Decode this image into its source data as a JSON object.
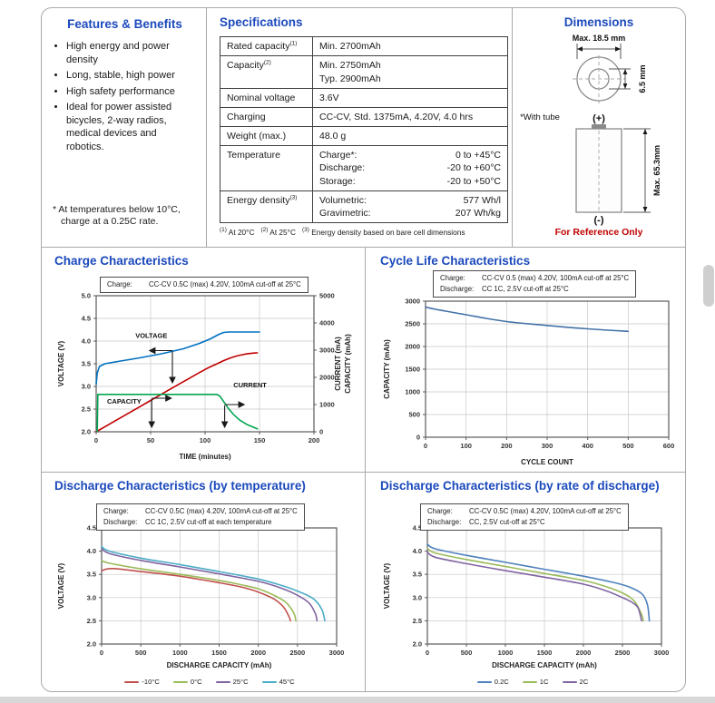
{
  "features": {
    "title": "Features & Benefits",
    "items": [
      "High energy and power density",
      "Long, stable, high power",
      "High safety performance",
      "Ideal for power assisted bicycles, 2-way radios, medical devices and robotics."
    ],
    "footnote": "* At temperatures below 10°C, charge at a 0.25C rate."
  },
  "specs": {
    "title": "Specifications",
    "rows": [
      {
        "label": "Rated capacity",
        "sup": "(1)",
        "values": [
          "Min. 2700mAh"
        ]
      },
      {
        "label": "Capacity",
        "sup": "(2)",
        "values": [
          "Min. 2750mAh",
          "Typ.  2900mAh"
        ]
      },
      {
        "label": "Nominal voltage",
        "values": [
          "3.6V"
        ]
      },
      {
        "label": "Charging",
        "values": [
          "CC-CV, Std. 1375mA, 4.20V, 4.0 hrs"
        ]
      },
      {
        "label": "Weight (max.)",
        "values": [
          "48.0 g"
        ]
      },
      {
        "label": "Temperature",
        "pairs": [
          [
            "Charge*:",
            "0 to +45°C"
          ],
          [
            "Discharge:",
            "-20 to +60°C"
          ],
          [
            "Storage:",
            "-20 to +50°C"
          ]
        ]
      },
      {
        "label": "Energy density",
        "sup": "(3)",
        "pairs": [
          [
            "Volumetric:",
            "577 Wh/l"
          ],
          [
            "Gravimetric:",
            "207 Wh/kg"
          ]
        ]
      }
    ],
    "footnotes": [
      {
        "sup": "(1)",
        "text": "At 20°C"
      },
      {
        "sup": "(2)",
        "text": "At 25°C"
      },
      {
        "sup": "(3)",
        "text": "Energy density based on bare cell dimensions"
      }
    ]
  },
  "dimensions": {
    "title": "Dimensions",
    "max_diameter": "Max. 18.5 mm",
    "tip_height": "6.5 mm",
    "with_tube": "*With tube",
    "positive": "(+)",
    "negative": "(-)",
    "max_height": "Max. 65.3mm",
    "footer": "For Reference Only"
  },
  "chart_data": [
    {
      "id": "charge",
      "type": "line",
      "title": "Charge Characteristics",
      "conditions": [
        {
          "label": "Charge:",
          "text": "CC-CV 0.5C (max) 4.20V, 100mA cut-off at 25°C"
        }
      ],
      "xlabel": "TIME (minutes)",
      "ylabel_left": "VOLTAGE (V)",
      "ylabel_right": [
        "CURRENT (mA)",
        "CAPACITY (mAh)"
      ],
      "xlim": [
        0,
        200
      ],
      "xticks": [
        0,
        50,
        100,
        150,
        200
      ],
      "ylim_left": [
        2.0,
        5.0
      ],
      "yticks_left": [
        2.0,
        2.5,
        3.0,
        3.5,
        4.0,
        4.5,
        5.0
      ],
      "ylim_right": [
        0,
        5000
      ],
      "yticks_right": [
        0,
        1000,
        2000,
        3000,
        4000,
        5000
      ],
      "grid": true,
      "series": [
        {
          "name": "VOLTAGE",
          "axis": "left",
          "color": "#0070c0",
          "smooth": false,
          "points": [
            [
              0,
              3.05
            ],
            [
              1,
              3.3
            ],
            [
              3,
              3.44
            ],
            [
              8,
              3.5
            ],
            [
              20,
              3.55
            ],
            [
              40,
              3.63
            ],
            [
              60,
              3.72
            ],
            [
              80,
              3.83
            ],
            [
              95,
              3.95
            ],
            [
              105,
              4.05
            ],
            [
              112,
              4.14
            ],
            [
              117,
              4.19
            ],
            [
              122,
              4.2
            ],
            [
              150,
              4.2
            ]
          ]
        },
        {
          "name": "CAPACITY",
          "axis": "right",
          "color": "#c00000",
          "smooth": true,
          "points": [
            [
              0,
              0
            ],
            [
              20,
              460
            ],
            [
              40,
              920
            ],
            [
              60,
              1380
            ],
            [
              80,
              1840
            ],
            [
              100,
              2290
            ],
            [
              110,
              2480
            ],
            [
              118,
              2630
            ],
            [
              126,
              2750
            ],
            [
              134,
              2830
            ],
            [
              142,
              2880
            ],
            [
              148,
              2900
            ]
          ]
        },
        {
          "name": "CURRENT",
          "axis": "right",
          "color": "#00a550",
          "smooth": false,
          "points": [
            [
              1,
              0
            ],
            [
              1.5,
              1375
            ],
            [
              40,
              1375
            ],
            [
              80,
              1375
            ],
            [
              111,
              1375
            ],
            [
              114,
              1295
            ],
            [
              117,
              1115
            ],
            [
              121,
              880
            ],
            [
              126,
              640
            ],
            [
              132,
              425
            ],
            [
              139,
              255
            ],
            [
              148,
              105
            ]
          ]
        }
      ],
      "annotations": [
        {
          "text": "VOLTAGE",
          "x": 36,
          "y": 4.07
        },
        {
          "text": "CAPACITY",
          "x": 10,
          "y": 2.62
        },
        {
          "text": "CURRENT",
          "x": 126,
          "y": 2.98
        }
      ],
      "arrows": [
        {
          "from": [
            70,
            3.79
          ],
          "to": [
            49,
            3.79
          ]
        },
        {
          "from": [
            70,
            3.77
          ],
          "to": [
            70,
            3.08
          ]
        },
        {
          "from": [
            51,
            2.74
          ],
          "to": [
            69,
            2.74
          ]
        },
        {
          "from": [
            51,
            2.72
          ],
          "to": [
            51,
            2.1
          ]
        },
        {
          "from": [
            118,
            2.6
          ],
          "to": [
            136,
            2.6
          ]
        },
        {
          "from": [
            118,
            2.58
          ],
          "to": [
            118,
            2.1
          ]
        }
      ]
    },
    {
      "id": "cycle",
      "type": "line",
      "title": "Cycle Life Characteristics",
      "conditions": [
        {
          "label": "Charge:",
          "text": "CC-CV 0.5 (max) 4.20V, 100mA cut-off at 25°C"
        },
        {
          "label": "Discharge:",
          "text": "CC 1C, 2.5V cut-off at 25°C"
        }
      ],
      "xlabel": "CYCLE COUNT",
      "ylabel": "CAPACITY (mAh)",
      "xlim": [
        0,
        600
      ],
      "xticks": [
        0,
        100,
        200,
        300,
        400,
        500,
        600
      ],
      "ylim": [
        0,
        3000
      ],
      "yticks": [
        0,
        500,
        1000,
        1500,
        2000,
        2500,
        3000
      ],
      "grid": true,
      "series": [
        {
          "name": "capacity-fade",
          "color": "#4472a8",
          "smooth": true,
          "points": [
            [
              0,
              2870
            ],
            [
              25,
              2820
            ],
            [
              50,
              2780
            ],
            [
              100,
              2700
            ],
            [
              150,
              2620
            ],
            [
              200,
              2550
            ],
            [
              250,
              2505
            ],
            [
              300,
              2465
            ],
            [
              350,
              2425
            ],
            [
              400,
              2390
            ],
            [
              450,
              2360
            ],
            [
              500,
              2335
            ]
          ]
        }
      ]
    },
    {
      "id": "discharge-temp",
      "type": "line",
      "title": "Discharge Characteristics (by temperature)",
      "conditions": [
        {
          "label": "Charge:",
          "text": "CC-CV 0.5C (max) 4.20V, 100mA cut-off at 25°C"
        },
        {
          "label": "Discharge:",
          "text": "CC 1C, 2.5V cut-off at each temperature"
        }
      ],
      "xlabel": "DISCHARGE CAPACITY (mAh)",
      "ylabel": "VOLTAGE (V)",
      "xlim": [
        0,
        3000
      ],
      "xticks": [
        0,
        500,
        1000,
        1500,
        2000,
        2500,
        3000
      ],
      "ylim": [
        2.0,
        4.5
      ],
      "yticks": [
        2.0,
        2.5,
        3.0,
        3.5,
        4.0,
        4.5
      ],
      "grid": true,
      "legend": "bottom",
      "series": [
        {
          "name": "-10°C",
          "color": "#c0504d",
          "smooth": true,
          "points": [
            [
              0,
              3.58
            ],
            [
              80,
              3.62
            ],
            [
              200,
              3.62
            ],
            [
              500,
              3.56
            ],
            [
              1000,
              3.46
            ],
            [
              1500,
              3.32
            ],
            [
              1800,
              3.22
            ],
            [
              2000,
              3.12
            ],
            [
              2200,
              2.97
            ],
            [
              2320,
              2.8
            ],
            [
              2390,
              2.6
            ],
            [
              2410,
              2.5
            ]
          ]
        },
        {
          "name": "0°C",
          "color": "#9bbb59",
          "smooth": true,
          "points": [
            [
              0,
              3.8
            ],
            [
              100,
              3.74
            ],
            [
              500,
              3.62
            ],
            [
              1000,
              3.5
            ],
            [
              1500,
              3.37
            ],
            [
              1800,
              3.27
            ],
            [
              2000,
              3.19
            ],
            [
              2200,
              3.05
            ],
            [
              2350,
              2.9
            ],
            [
              2450,
              2.68
            ],
            [
              2480,
              2.5
            ]
          ]
        },
        {
          "name": "25°C",
          "color": "#8064a2",
          "smooth": true,
          "points": [
            [
              0,
              4.06
            ],
            [
              100,
              3.95
            ],
            [
              500,
              3.8
            ],
            [
              1000,
              3.66
            ],
            [
              1500,
              3.51
            ],
            [
              2000,
              3.35
            ],
            [
              2300,
              3.2
            ],
            [
              2500,
              3.05
            ],
            [
              2650,
              2.88
            ],
            [
              2730,
              2.65
            ],
            [
              2750,
              2.5
            ]
          ]
        },
        {
          "name": "45°C",
          "color": "#4bacc6",
          "smooth": true,
          "points": [
            [
              0,
              4.1
            ],
            [
              100,
              4.0
            ],
            [
              500,
              3.85
            ],
            [
              1000,
              3.71
            ],
            [
              1500,
              3.56
            ],
            [
              2000,
              3.4
            ],
            [
              2300,
              3.26
            ],
            [
              2500,
              3.14
            ],
            [
              2700,
              2.98
            ],
            [
              2810,
              2.75
            ],
            [
              2850,
              2.5
            ]
          ]
        }
      ]
    },
    {
      "id": "discharge-rate",
      "type": "line",
      "title": "Discharge Characteristics (by rate of discharge)",
      "conditions": [
        {
          "label": "Charge:",
          "text": "CC-CV 0.5C (max) 4.20V, 100mA cut-off at 25°C"
        },
        {
          "label": "Discharge:",
          "text": "CC, 2.5V cut-off at 25°C"
        }
      ],
      "xlabel": "DISCHARGE CAPACITY (mAh)",
      "ylabel": "VOLTAGE (V)",
      "xlim": [
        0,
        3000
      ],
      "xticks": [
        0,
        500,
        1000,
        1500,
        2000,
        2500,
        3000
      ],
      "ylim": [
        2.0,
        4.5
      ],
      "yticks": [
        2.0,
        2.5,
        3.0,
        3.5,
        4.0,
        4.5
      ],
      "grid": true,
      "legend": "bottom",
      "series": [
        {
          "name": "0.2C",
          "color": "#4f81bd",
          "smooth": true,
          "points": [
            [
              0,
              4.15
            ],
            [
              100,
              4.05
            ],
            [
              500,
              3.91
            ],
            [
              1000,
              3.76
            ],
            [
              1500,
              3.61
            ],
            [
              2000,
              3.46
            ],
            [
              2400,
              3.32
            ],
            [
              2600,
              3.22
            ],
            [
              2750,
              3.08
            ],
            [
              2820,
              2.85
            ],
            [
              2845,
              2.5
            ]
          ]
        },
        {
          "name": "1C",
          "color": "#9bbb59",
          "smooth": true,
          "points": [
            [
              0,
              4.06
            ],
            [
              100,
              3.96
            ],
            [
              500,
              3.82
            ],
            [
              1000,
              3.67
            ],
            [
              1500,
              3.52
            ],
            [
              2000,
              3.37
            ],
            [
              2300,
              3.23
            ],
            [
              2500,
              3.1
            ],
            [
              2650,
              2.93
            ],
            [
              2750,
              2.62
            ],
            [
              2765,
              2.5
            ]
          ]
        },
        {
          "name": "2C",
          "color": "#8064a2",
          "smooth": true,
          "points": [
            [
              0,
              3.98
            ],
            [
              100,
              3.87
            ],
            [
              500,
              3.73
            ],
            [
              1000,
              3.58
            ],
            [
              1500,
              3.44
            ],
            [
              2000,
              3.29
            ],
            [
              2300,
              3.14
            ],
            [
              2500,
              3.0
            ],
            [
              2620,
              2.9
            ],
            [
              2700,
              2.78
            ],
            [
              2745,
              2.5
            ]
          ]
        }
      ]
    }
  ]
}
